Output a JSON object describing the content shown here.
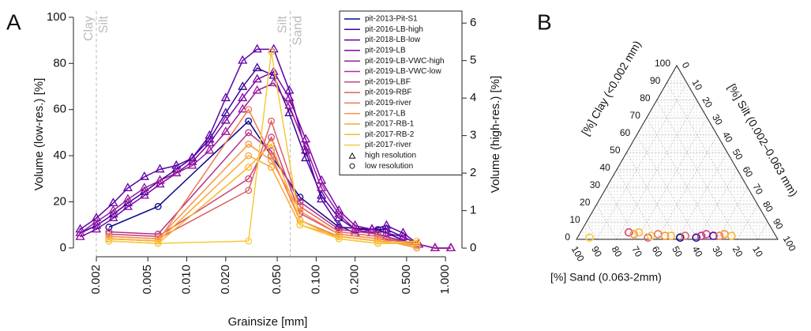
{
  "chart_data": [
    {
      "type": "line",
      "panel_label": "A",
      "xlabel": "Grainsize [mm]",
      "ylabel": "Volume (low-res.) [%]",
      "y2label": "Volume (high-res.) [%]",
      "log_x": true,
      "xlim": [
        0.00133,
        1.34
      ],
      "ylim": [
        -3.8,
        102.7
      ],
      "y2lim": [
        -0.23,
        6.32
      ],
      "xticks": [
        0.002,
        0.005,
        {
          "value": 0.01,
          "label": "0.010"
        },
        {
          "value": 0.02,
          "label": "0.020"
        },
        {
          "value": 0.05,
          "label": "0.050"
        },
        {
          "value": 0.1,
          "label": "0.100"
        },
        {
          "value": 0.2,
          "label": "0.200"
        },
        {
          "value": 0.5,
          "label": "0.500"
        },
        {
          "value": 1,
          "label": "1.000"
        }
      ],
      "yticks": [
        0,
        20,
        40,
        60,
        80,
        100
      ],
      "y2ticks": [
        0,
        1,
        2,
        3,
        4,
        5,
        6
      ],
      "boundaries": [
        {
          "value": 0.002,
          "left": "Clay",
          "right": "Silt"
        },
        {
          "value": 0.063,
          "left": "Silt",
          "right": "Sand"
        }
      ],
      "series": [
        {
          "name": "pit-2013-Pit-S1",
          "color": "#0d0887",
          "marker": "circle",
          "x": [
            0.0025,
            0.006,
            0.03,
            0.045,
            0.075,
            0.15,
            0.3,
            0.6
          ],
          "values": [
            9,
            18,
            55,
            40,
            22,
            9,
            8,
            1
          ]
        },
        {
          "name": "pit-2016-LB-high",
          "color": "#3a049a",
          "marker": "triangle",
          "axis": "y2",
          "x": [
            0.0015,
            0.002,
            0.0027,
            0.0035,
            0.0047,
            0.0062,
            0.0083,
            0.011,
            0.015,
            0.02,
            0.027,
            0.035,
            0.047,
            0.062,
            0.083,
            0.11,
            0.15,
            0.2,
            0.27,
            0.35,
            0.47,
            0.62,
            0.83,
            1.1
          ],
          "values": [
            0.4,
            0.6,
            0.9,
            1.2,
            1.5,
            1.8,
            2.1,
            2.4,
            2.9,
            3.6,
            4.3,
            4.8,
            4.6,
            3.6,
            2.4,
            1.4,
            0.8,
            0.5,
            0.5,
            0.5,
            0.3,
            0.1,
            0,
            0
          ]
        },
        {
          "name": "pit-2018-LB-low",
          "color": "#5c01a6",
          "marker": "triangle",
          "axis": "y2",
          "x": [
            0.0015,
            0.002,
            0.0027,
            0.0035,
            0.0047,
            0.0062,
            0.0083,
            0.011,
            0.015,
            0.02,
            0.027,
            0.035,
            0.047,
            0.062,
            0.083,
            0.11,
            0.15,
            0.2,
            0.27,
            0.35,
            0.47,
            0.62,
            0.83,
            1.1
          ],
          "values": [
            0.5,
            0.8,
            1.2,
            1.6,
            1.9,
            2.1,
            2.2,
            2.4,
            3.0,
            4.0,
            5.0,
            5.3,
            5.3,
            4.2,
            2.6,
            1.3,
            0.6,
            0.4,
            0.5,
            0.6,
            0.4,
            0.1,
            0,
            0
          ]
        },
        {
          "name": "pit-2019-LB",
          "color": "#7e03a8",
          "marker": "triangle",
          "axis": "y2",
          "x": [
            0.0015,
            0.002,
            0.0027,
            0.0035,
            0.0047,
            0.0062,
            0.0083,
            0.011,
            0.015,
            0.02,
            0.027,
            0.035,
            0.047,
            0.062,
            0.083,
            0.11,
            0.15,
            0.2,
            0.27,
            0.35,
            0.47,
            0.62,
            0.83,
            1.1
          ],
          "values": [
            0.3,
            0.5,
            0.8,
            1.1,
            1.4,
            1.7,
            2.0,
            2.3,
            2.8,
            3.4,
            4.0,
            4.5,
            4.7,
            4.0,
            2.9,
            1.8,
            1.0,
            0.6,
            0.5,
            0.4,
            0.3,
            0.1,
            0,
            0
          ]
        },
        {
          "name": "pit-2019-LB-VWC-high",
          "color": "#9c179e",
          "marker": "triangle",
          "axis": "y2",
          "x": [
            0.0015,
            0.002,
            0.0027,
            0.0035,
            0.0047,
            0.0062,
            0.0083,
            0.011,
            0.015,
            0.02,
            0.027,
            0.035,
            0.047,
            0.062,
            0.083,
            0.11,
            0.15,
            0.2,
            0.27,
            0.35,
            0.47,
            0.62,
            0.83,
            1.1
          ],
          "values": [
            0.4,
            0.7,
            1.0,
            1.3,
            1.6,
            1.8,
            2.0,
            2.2,
            2.6,
            3.1,
            3.7,
            4.2,
            4.4,
            3.8,
            2.7,
            1.6,
            0.9,
            0.5,
            0.4,
            0.3,
            0.2,
            0.1,
            0,
            0
          ]
        },
        {
          "name": "pit-2019-LB-VWC-low",
          "color": "#b52f8c",
          "marker": "circle",
          "x": [
            0.0025,
            0.006,
            0.03,
            0.045,
            0.075,
            0.15,
            0.3,
            0.6
          ],
          "values": [
            7,
            6,
            50,
            42,
            20,
            8,
            6,
            1
          ]
        },
        {
          "name": "pit-2019-LBF",
          "color": "#cc4778",
          "marker": "circle",
          "x": [
            0.0025,
            0.006,
            0.03,
            0.045,
            0.075,
            0.15,
            0.3,
            0.6
          ],
          "values": [
            6,
            5,
            30,
            48,
            15,
            6,
            4,
            2
          ]
        },
        {
          "name": "pit-2019-RBF",
          "color": "#de5f65",
          "marker": "circle",
          "x": [
            0.0025,
            0.006,
            0.03,
            0.045,
            0.075,
            0.15,
            0.3,
            0.6
          ],
          "values": [
            5,
            4,
            25,
            55,
            18,
            7,
            5,
            1
          ]
        },
        {
          "name": "pit-2019-river",
          "color": "#ed7953",
          "marker": "circle",
          "x": [
            0.0025,
            0.006,
            0.03,
            0.045,
            0.075,
            0.15,
            0.3,
            0.6
          ],
          "values": [
            4,
            3,
            60,
            40,
            12,
            5,
            3,
            1
          ]
        },
        {
          "name": "pit-2017-LB",
          "color": "#f89540",
          "marker": "circle",
          "x": [
            0.0025,
            0.006,
            0.03,
            0.045,
            0.075,
            0.15,
            0.3,
            0.6
          ],
          "values": [
            5,
            4,
            45,
            38,
            16,
            6,
            4,
            0
          ]
        },
        {
          "name": "pit-2017-RB-1",
          "color": "#fca636",
          "marker": "circle",
          "x": [
            0.0025,
            0.006,
            0.03,
            0.045,
            0.075,
            0.15,
            0.3,
            0.6
          ],
          "values": [
            4,
            3,
            40,
            35,
            10,
            5,
            3,
            1
          ]
        },
        {
          "name": "pit-2017-RB-2",
          "color": "#fdb42f",
          "marker": "circle",
          "x": [
            0.0025,
            0.006,
            0.03,
            0.045,
            0.075,
            0.15,
            0.3,
            0.6
          ],
          "values": [
            3,
            2,
            35,
            45,
            12,
            4,
            2,
            2
          ]
        },
        {
          "name": "pit-2017-river",
          "color": "#f7c93a",
          "marker": "circle",
          "x": [
            0.0025,
            0.006,
            0.03,
            0.045,
            0.075,
            0.15,
            0.3,
            0.6
          ],
          "values": [
            3,
            2,
            3,
            85,
            10,
            4,
            2,
            3
          ]
        }
      ],
      "marker_legend": [
        {
          "label": "high resolution",
          "marker": "triangle"
        },
        {
          "label": "low resolution",
          "marker": "circle"
        }
      ]
    },
    {
      "type": "ternary",
      "panel_label": "B",
      "clay_label": "[%] Clay (<0.002 mm)",
      "silt_label": "[%] Silt (0.002–0.063 mm)",
      "sand_label": "[%] Sand (0.063-2mm)",
      "clay_ticks": [
        0,
        10,
        20,
        30,
        40,
        50,
        60,
        70,
        80,
        90,
        100
      ],
      "silt_ticks": [
        0,
        10,
        20,
        30,
        40,
        50,
        60,
        70,
        80,
        90,
        100
      ],
      "sand_ticks": [
        10,
        20,
        30,
        40,
        50,
        60,
        70,
        80,
        90,
        100
      ],
      "points": [
        {
          "sand": 93,
          "silt": 6,
          "clay": 1,
          "color": "#f7c93a"
        },
        {
          "sand": 72,
          "silt": 24,
          "clay": 4,
          "color": "#cc4778"
        },
        {
          "sand": 70,
          "silt": 27,
          "clay": 3,
          "color": "#f89540"
        },
        {
          "sand": 67,
          "silt": 29,
          "clay": 4,
          "color": "#fdb42f"
        },
        {
          "sand": 64,
          "silt": 35,
          "clay": 1,
          "color": "#de5f65"
        },
        {
          "sand": 62,
          "silt": 36,
          "clay": 2,
          "color": "#f7c93a"
        },
        {
          "sand": 58,
          "silt": 39,
          "clay": 3,
          "color": "#ed7953"
        },
        {
          "sand": 55,
          "silt": 43,
          "clay": 2,
          "color": "#f89540"
        },
        {
          "sand": 52,
          "silt": 46,
          "clay": 2,
          "color": "#fdb42f"
        },
        {
          "sand": 48,
          "silt": 51,
          "clay": 1,
          "color": "#0d0887"
        },
        {
          "sand": 45,
          "silt": 53,
          "clay": 2,
          "color": "#de5f65"
        },
        {
          "sand": 40,
          "silt": 59,
          "clay": 1,
          "color": "#3a049a"
        },
        {
          "sand": 37,
          "silt": 61,
          "clay": 2,
          "color": "#b52f8c"
        },
        {
          "sand": 34,
          "silt": 63,
          "clay": 3,
          "color": "#cc4778"
        },
        {
          "sand": 31,
          "silt": 67,
          "clay": 2,
          "color": "#5c01a6"
        },
        {
          "sand": 28,
          "silt": 70,
          "clay": 2,
          "color": "#ed7953"
        },
        {
          "sand": 25,
          "silt": 72,
          "clay": 3,
          "color": "#f89540"
        },
        {
          "sand": 22,
          "silt": 76,
          "clay": 2,
          "color": "#fdb42f"
        }
      ]
    }
  ]
}
